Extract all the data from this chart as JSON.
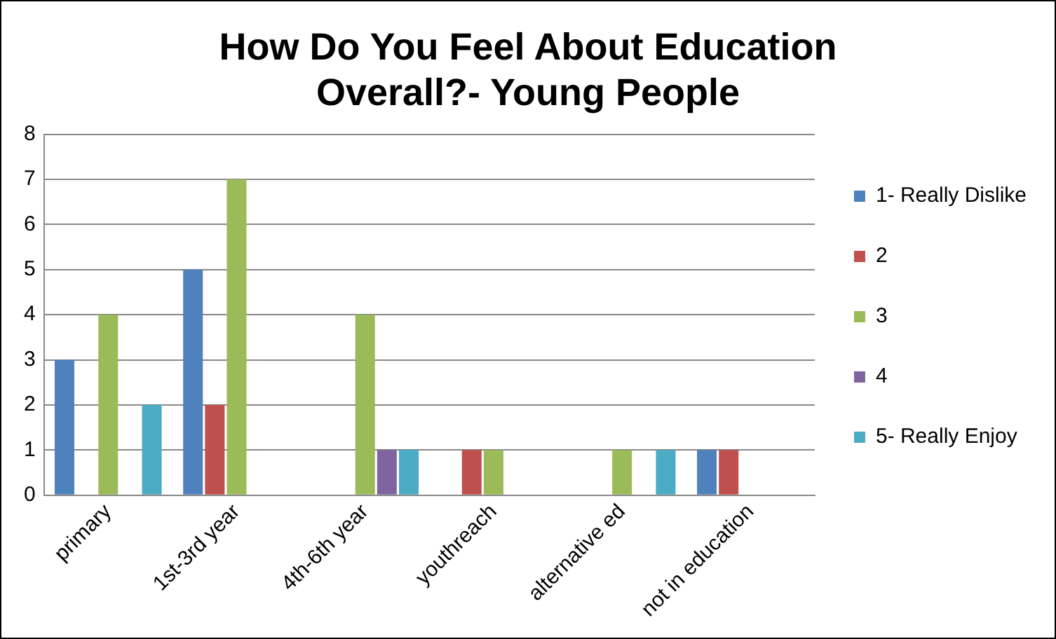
{
  "chart_data": {
    "type": "bar",
    "title": [
      "How Do You Feel About Education",
      "Overall?- Young People"
    ],
    "categories": [
      "primary",
      "1st-3rd year",
      "4th-6th year",
      "youthreach",
      "alternative ed",
      "not in education"
    ],
    "series": [
      {
        "name": "1- Really Dislike",
        "color": "#4f81bd",
        "values": [
          3,
          5,
          0,
          0,
          0,
          1
        ]
      },
      {
        "name": "2",
        "color": "#c0504d",
        "values": [
          0,
          2,
          0,
          1,
          0,
          1
        ]
      },
      {
        "name": "3",
        "color": "#9bbb59",
        "values": [
          4,
          7,
          4,
          1,
          1,
          0
        ]
      },
      {
        "name": "4",
        "color": "#8064a2",
        "values": [
          0,
          0,
          1,
          0,
          0,
          0
        ]
      },
      {
        "name": "5- Really Enjoy",
        "color": "#4bacc6",
        "values": [
          2,
          0,
          1,
          0,
          1,
          0
        ]
      }
    ],
    "ylim": [
      0,
      8
    ],
    "yticks": [
      0,
      1,
      2,
      3,
      4,
      5,
      6,
      7,
      8
    ],
    "grid": "y",
    "legend": "right"
  }
}
